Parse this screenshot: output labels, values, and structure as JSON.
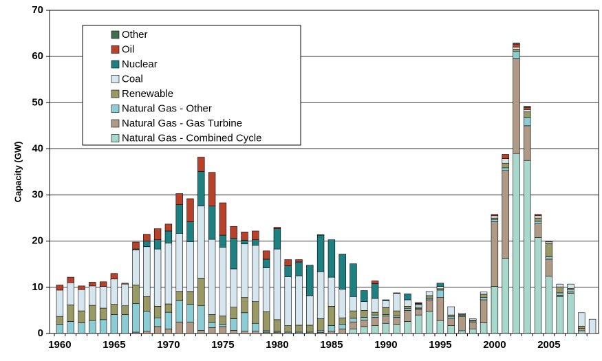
{
  "chart_data": {
    "type": "stacked_bar",
    "y_label": "Capacity (GW)",
    "categories": [
      "1960",
      null,
      null,
      null,
      null,
      "1965",
      null,
      null,
      null,
      null,
      "1970",
      null,
      null,
      null,
      null,
      "1975",
      null,
      null,
      null,
      null,
      "1980",
      null,
      null,
      null,
      null,
      "1985",
      null,
      null,
      null,
      null,
      "1990",
      null,
      null,
      null,
      null,
      "1995",
      null,
      null,
      null,
      null,
      "2000",
      null,
      null,
      null,
      null,
      "2005",
      null,
      null,
      null,
      null
    ],
    "ylim": [
      0,
      70
    ],
    "yticks": [
      0,
      10,
      20,
      30,
      40,
      50,
      60,
      70
    ],
    "grid": true,
    "legend": "upper left",
    "series": [
      {
        "name": "Natural Gas - Combined Cycle",
        "color": "#a8d8cc",
        "values": [
          0,
          0,
          0,
          0,
          0,
          0,
          0,
          0,
          0,
          0,
          0,
          0,
          0,
          0,
          0,
          0,
          0,
          0,
          0,
          0,
          0,
          0,
          0,
          0,
          0,
          0,
          0,
          1,
          1.5,
          1.7,
          2.2,
          2,
          2.6,
          4,
          4.8,
          2.8,
          1.7,
          0.6,
          1,
          2.3,
          10.2,
          16.3,
          39,
          37.5,
          20.8,
          12.4,
          8,
          8.7,
          0.6,
          0
        ]
      },
      {
        "name": "Natural Gas - Gas Turbine",
        "color": "#b09a85",
        "values": [
          0,
          0,
          0,
          0,
          0,
          0,
          0,
          0.3,
          0.5,
          1.5,
          1,
          2.5,
          2.5,
          0.7,
          1.3,
          1.5,
          0.7,
          0.5,
          0.5,
          0.3,
          0.3,
          0,
          0,
          0,
          0.2,
          0.5,
          1,
          1.5,
          1.4,
          1.8,
          1.6,
          1.5,
          2.4,
          1.2,
          2.5,
          5,
          1.6,
          3.1,
          1.5,
          5,
          14,
          19,
          20.5,
          7.5,
          3,
          3.7,
          0.3,
          0.3,
          0.5,
          0
        ]
      },
      {
        "name": "Natural Gas - Other",
        "color": "#8ccdd5",
        "values": [
          2,
          2.6,
          2.3,
          2.8,
          3,
          4.1,
          4.1,
          6.2,
          4.3,
          1.9,
          3.6,
          4.6,
          3.8,
          5.3,
          1.1,
          0.5,
          2.5,
          4,
          1.7,
          0.3,
          0.2,
          0.3,
          0.3,
          0.3,
          0.4,
          1.2,
          1,
          0.8,
          0.6,
          0.5,
          0.3,
          0.3,
          0.4,
          0.2,
          0.3,
          1.6,
          0.4,
          0.2,
          0.2,
          0.5,
          0.5,
          0.6,
          1.6,
          1.8,
          0.5,
          0.5,
          0.5,
          0.5,
          0,
          0
        ]
      },
      {
        "name": "Renewable",
        "color": "#999966",
        "values": [
          1.7,
          3.6,
          2.6,
          3.3,
          2.5,
          2.2,
          1.9,
          4,
          3.2,
          2.5,
          1.8,
          2,
          2.8,
          6,
          1.7,
          1.8,
          2.5,
          3.3,
          4.7,
          4.1,
          2.5,
          1.4,
          1.5,
          1.5,
          2.6,
          4.2,
          1.4,
          1.6,
          1.5,
          0.6,
          1.5,
          1.1,
          0.5,
          0.3,
          0.6,
          0.3,
          0.3,
          0.2,
          0.2,
          0.7,
          0.3,
          1,
          0.5,
          1.2,
          0.7,
          3,
          1.3,
          0.3,
          0.5,
          0
        ]
      },
      {
        "name": "Coal",
        "color": "#d6e6ee",
        "values": [
          5.7,
          4.8,
          4.6,
          4.2,
          4.7,
          5.5,
          4.7,
          7.6,
          10.8,
          12.4,
          13.2,
          12.6,
          10.8,
          15.6,
          16.3,
          14.9,
          8.3,
          11.6,
          12.2,
          9.5,
          15.3,
          10.6,
          10.7,
          6.4,
          10.2,
          6.3,
          6.2,
          3.1,
          1.9,
          3,
          1.5,
          3.8,
          1.4,
          0.5,
          0.9,
          0.5,
          1.8,
          0.3,
          0.3,
          0.5,
          0.5,
          1,
          0.4,
          0.5,
          0.5,
          0.3,
          0.6,
          0.9,
          2.9,
          3.1
        ]
      },
      {
        "name": "Nuclear",
        "color": "#1e8080",
        "values": [
          0,
          0,
          0,
          0,
          0,
          0,
          0,
          0.2,
          1.2,
          2,
          2.6,
          6.2,
          4.3,
          7.5,
          7.2,
          2.6,
          6.6,
          0.8,
          1.2,
          1.9,
          4.4,
          2.4,
          3,
          6.6,
          7.9,
          8.1,
          7.6,
          7.1,
          2.4,
          3.2,
          0.2,
          0,
          1.3,
          0.3,
          0,
          0.7,
          0,
          0,
          0,
          0,
          0,
          0,
          0,
          0,
          0,
          0,
          0,
          0,
          0,
          0
        ]
      },
      {
        "name": "Oil",
        "color": "#b8412b",
        "values": [
          1.1,
          1.2,
          0.8,
          0.8,
          1,
          1.2,
          0.2,
          1.5,
          1.5,
          2.4,
          1.5,
          2.4,
          5,
          3.1,
          7.3,
          7,
          2.6,
          1.8,
          1.9,
          1.8,
          0.3,
          1.3,
          0.5,
          0,
          0.1,
          0,
          0,
          0,
          0,
          0.6,
          0,
          0.1,
          0,
          0.2,
          0,
          0,
          0,
          0,
          0,
          0,
          0.3,
          0.9,
          0.7,
          0.5,
          0.3,
          0.1,
          0,
          0,
          0,
          0
        ]
      },
      {
        "name": "Other",
        "color": "#3e6e4c",
        "values": [
          0,
          0,
          0,
          0,
          0,
          0,
          0,
          0,
          0,
          0,
          0,
          0,
          0,
          0,
          0,
          0,
          0,
          0,
          0,
          0,
          0,
          0,
          0,
          0,
          0,
          0,
          0,
          0,
          0,
          0,
          0,
          0,
          0,
          0,
          0,
          0,
          0,
          0,
          0,
          0,
          0,
          0,
          0.2,
          0.2,
          0,
          0,
          0,
          0,
          0,
          0
        ]
      }
    ]
  }
}
